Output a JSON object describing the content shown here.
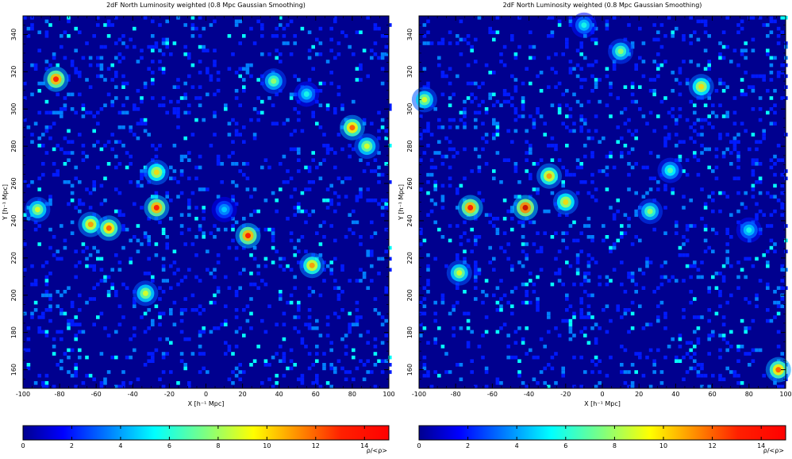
{
  "chart_data": [
    {
      "type": "heatmap",
      "title": "2dF North Luminosity weighted (0.8 Mpc Gaussian Smoothing)",
      "xlabel": "X [h^{-1} Mpc]",
      "ylabel": "Y [h^{-1} Mpc]",
      "xlim": [
        -100,
        100
      ],
      "ylim": [
        150,
        350
      ],
      "x_ticks": [
        -100,
        -80,
        -60,
        -40,
        -20,
        0,
        20,
        40,
        60,
        80,
        100
      ],
      "y_ticks": [
        160,
        180,
        200,
        220,
        240,
        260,
        280,
        300,
        320,
        340
      ],
      "grid": false,
      "colorbar": {
        "label": "ρ/<ρ>",
        "range": [
          0,
          15
        ],
        "ticks": [
          0,
          2,
          4,
          6,
          8,
          10,
          12,
          14
        ]
      },
      "features": [
        {
          "x": -82,
          "y": 316,
          "value": 13
        },
        {
          "x": -63,
          "y": 238,
          "value": 11
        },
        {
          "x": -53,
          "y": 236,
          "value": 12
        },
        {
          "x": -27,
          "y": 247,
          "value": 13
        },
        {
          "x": -27,
          "y": 266,
          "value": 10
        },
        {
          "x": -33,
          "y": 201,
          "value": 9
        },
        {
          "x": 10,
          "y": 246,
          "value": 5
        },
        {
          "x": 23,
          "y": 232,
          "value": 13
        },
        {
          "x": 37,
          "y": 315,
          "value": 8
        },
        {
          "x": 58,
          "y": 216,
          "value": 11
        },
        {
          "x": 80,
          "y": 290,
          "value": 12
        },
        {
          "x": 88,
          "y": 280,
          "value": 9
        },
        {
          "x": 55,
          "y": 308,
          "value": 6
        },
        {
          "x": -92,
          "y": 246,
          "value": 9
        }
      ]
    },
    {
      "type": "heatmap",
      "title": "2dF North Luminosity weighted (0.8 Mpc Gaussian Smoothing)",
      "xlabel": "X [h^{-1} Mpc]",
      "ylabel": "Y [h^{-1} Mpc]",
      "xlim": [
        -100,
        100
      ],
      "ylim": [
        150,
        350
      ],
      "x_ticks": [
        -100,
        -80,
        -60,
        -40,
        -20,
        0,
        20,
        40,
        60,
        80,
        100
      ],
      "y_ticks": [
        160,
        180,
        200,
        220,
        240,
        260,
        280,
        300,
        320,
        340
      ],
      "grid": false,
      "colorbar": {
        "label": "ρ/<ρ>",
        "range": [
          0,
          15
        ],
        "ticks": [
          0,
          2,
          4,
          6,
          8,
          10,
          12,
          14
        ]
      },
      "features": [
        {
          "x": -72,
          "y": 247,
          "value": 13
        },
        {
          "x": -42,
          "y": 247,
          "value": 14
        },
        {
          "x": -29,
          "y": 264,
          "value": 11
        },
        {
          "x": -20,
          "y": 250,
          "value": 10
        },
        {
          "x": -78,
          "y": 212,
          "value": 9
        },
        {
          "x": 10,
          "y": 331,
          "value": 8
        },
        {
          "x": 54,
          "y": 312,
          "value": 10
        },
        {
          "x": 26,
          "y": 245,
          "value": 8
        },
        {
          "x": 37,
          "y": 267,
          "value": 7
        },
        {
          "x": 96,
          "y": 160,
          "value": 12
        },
        {
          "x": -97,
          "y": 305,
          "value": 9
        },
        {
          "x": -10,
          "y": 345,
          "value": 6
        },
        {
          "x": 80,
          "y": 235,
          "value": 6
        }
      ]
    }
  ]
}
